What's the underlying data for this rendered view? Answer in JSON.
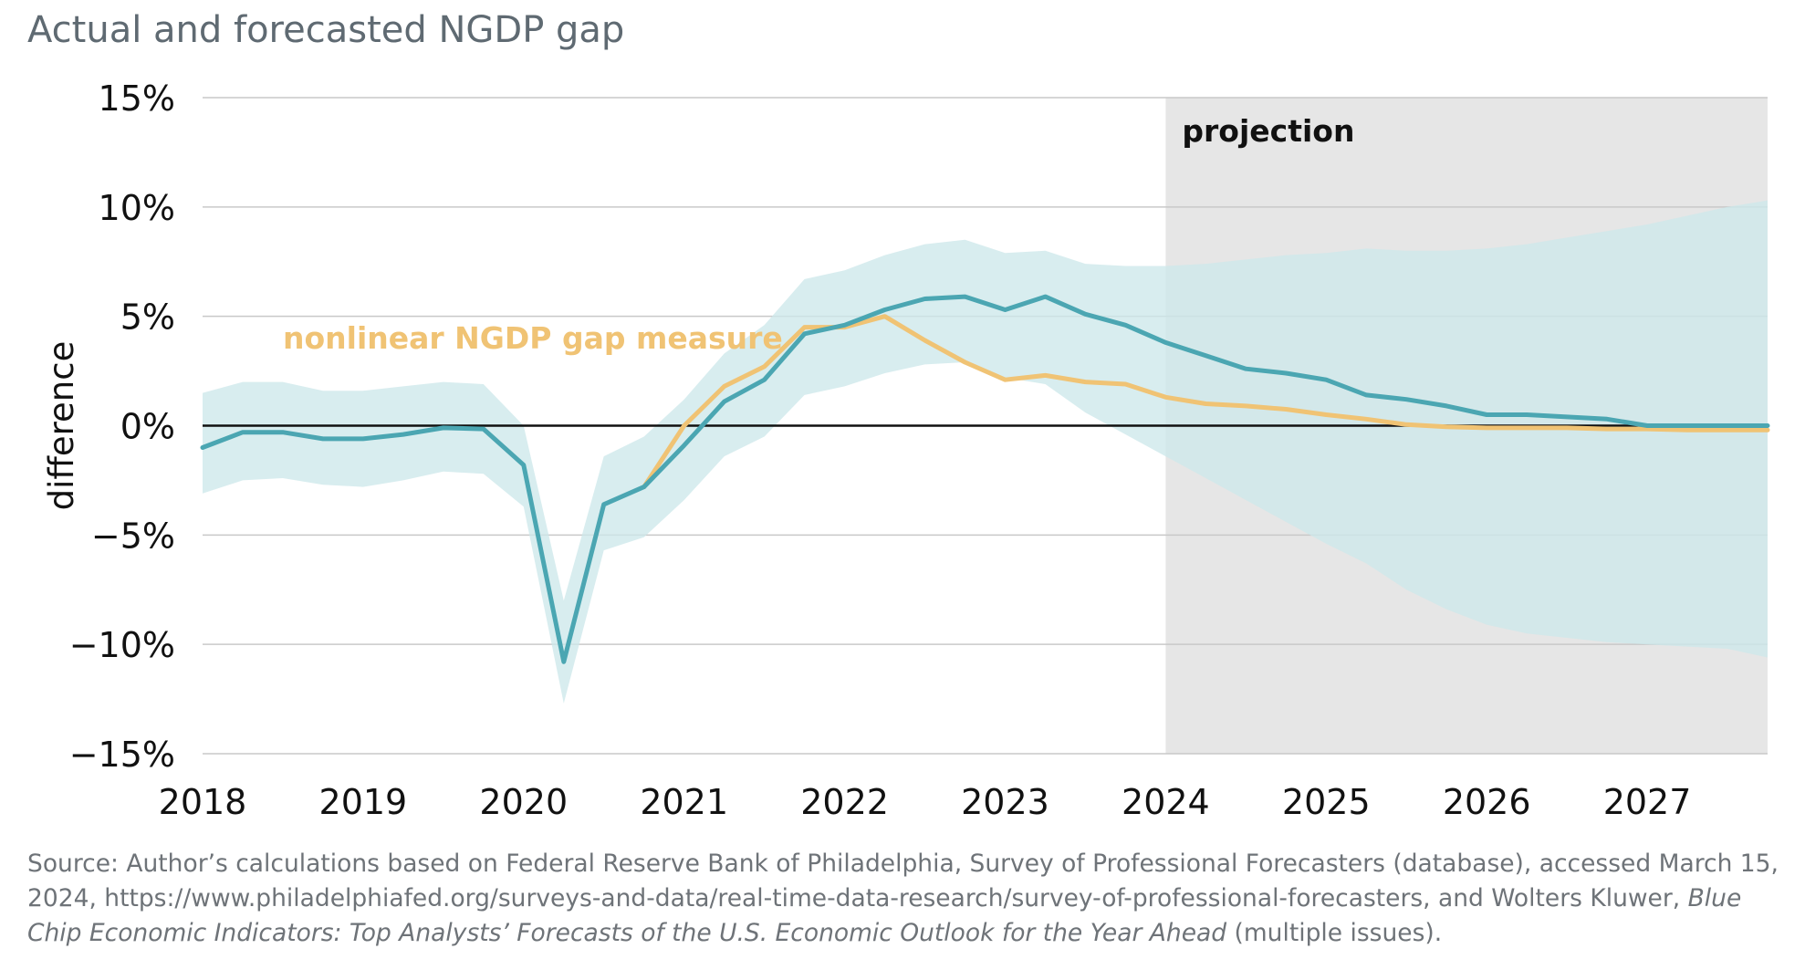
{
  "chart_data": {
    "type": "line",
    "title": "Actual and forecasted NGDP gap",
    "ylabel": "difference",
    "xlabel": "",
    "ylim": [
      -15,
      15
    ],
    "xlim": [
      2018,
      2027.75
    ],
    "y_ticks": [
      15,
      10,
      5,
      0,
      -5,
      -10,
      -15
    ],
    "y_tick_labels": [
      "15%",
      "10%",
      "5%",
      "0%",
      "−5%",
      "−10%",
      "−15%"
    ],
    "x_ticks": [
      2018,
      2019,
      2020,
      2021,
      2022,
      2023,
      2024,
      2025,
      2026,
      2027
    ],
    "x_tick_labels": [
      "2018",
      "2019",
      "2020",
      "2021",
      "2022",
      "2023",
      "2024",
      "2025",
      "2026",
      "2027"
    ],
    "grid": "horizontal",
    "projection": {
      "start": 2024,
      "end": 2027.75,
      "label": "projection"
    },
    "series": [
      {
        "name": "",
        "color": "#4ba6b2",
        "x": [
          2018,
          2018.25,
          2018.5,
          2018.75,
          2019,
          2019.25,
          2019.5,
          2019.75,
          2020,
          2020.25,
          2020.5,
          2020.75,
          2021,
          2021.25,
          2021.5,
          2021.75,
          2022,
          2022.25,
          2022.5,
          2022.75,
          2023,
          2023.25,
          2023.5,
          2023.75,
          2024,
          2024.25,
          2024.5,
          2024.75,
          2025,
          2025.25,
          2025.5,
          2025.75,
          2026,
          2026.25,
          2026.5,
          2026.75,
          2027,
          2027.25,
          2027.5,
          2027.75
        ],
        "values": [
          -1.0,
          -0.3,
          -0.3,
          -0.6,
          -0.6,
          -0.4,
          -0.1,
          -0.15,
          -1.8,
          -10.8,
          -3.6,
          -2.8,
          -0.9,
          1.1,
          2.1,
          4.2,
          4.6,
          5.3,
          5.8,
          5.9,
          5.3,
          5.9,
          5.1,
          4.6,
          3.8,
          3.2,
          2.6,
          2.4,
          2.1,
          1.4,
          1.2,
          0.9,
          0.5,
          0.5,
          0.4,
          0.3,
          0.0,
          0.0,
          0.0,
          0.0
        ]
      },
      {
        "name": "nonlinear NGDP gap measure",
        "color": "#f0c374",
        "x": [
          2020.75,
          2021,
          2021.25,
          2021.5,
          2021.75,
          2022,
          2022.25,
          2022.5,
          2022.75,
          2023,
          2023.25,
          2023.5,
          2023.75,
          2024,
          2024.25,
          2024.5,
          2024.75,
          2025,
          2025.25,
          2025.5,
          2025.75,
          2026,
          2026.25,
          2026.5,
          2026.75,
          2027,
          2027.25,
          2027.5,
          2027.75
        ],
        "values": [
          -2.8,
          0.0,
          1.8,
          2.7,
          4.5,
          4.5,
          5.0,
          3.9,
          2.9,
          2.1,
          2.3,
          2.0,
          1.9,
          1.3,
          1.0,
          0.9,
          0.75,
          0.5,
          0.3,
          0.05,
          -0.05,
          -0.1,
          -0.1,
          -0.1,
          -0.15,
          -0.15,
          -0.2,
          -0.2,
          -0.2
        ]
      }
    ],
    "band": {
      "color": "#cde8eb",
      "x": [
        2018,
        2018.25,
        2018.5,
        2018.75,
        2019,
        2019.25,
        2019.5,
        2019.75,
        2020,
        2020.25,
        2020.5,
        2020.75,
        2021,
        2021.25,
        2021.5,
        2021.75,
        2022,
        2022.25,
        2022.5,
        2022.75,
        2023,
        2023.25,
        2023.5,
        2023.75,
        2024,
        2024.25,
        2024.5,
        2024.75,
        2025,
        2025.25,
        2025.5,
        2025.75,
        2026,
        2026.25,
        2026.5,
        2026.75,
        2027,
        2027.25,
        2027.5,
        2027.75
      ],
      "upper": [
        1.5,
        2.0,
        2.0,
        1.6,
        1.6,
        1.8,
        2.0,
        1.9,
        0.0,
        -8.0,
        -1.4,
        -0.5,
        1.2,
        3.3,
        4.6,
        6.7,
        7.1,
        7.8,
        8.3,
        8.5,
        7.9,
        8.0,
        7.4,
        7.3,
        7.3,
        7.4,
        7.6,
        7.8,
        7.9,
        8.1,
        8.0,
        8.0,
        8.1,
        8.3,
        8.6,
        8.9,
        9.2,
        9.6,
        10.0,
        10.3
      ],
      "lower": [
        -3.1,
        -2.5,
        -2.4,
        -2.7,
        -2.8,
        -2.5,
        -2.1,
        -2.2,
        -3.7,
        -12.7,
        -5.7,
        -5.1,
        -3.4,
        -1.4,
        -0.5,
        1.4,
        1.8,
        2.4,
        2.8,
        2.9,
        2.2,
        1.9,
        0.6,
        -0.4,
        -1.4,
        -2.4,
        -3.4,
        -4.4,
        -5.4,
        -6.3,
        -7.5,
        -8.4,
        -9.1,
        -9.5,
        -9.7,
        -9.9,
        -10.0,
        -10.1,
        -10.2,
        -10.6
      ]
    },
    "annotations": [
      "nonlinear NGDP gap measure",
      "projection"
    ]
  },
  "source": {
    "lead": "Source: Author’s calculations based on Federal Reserve Bank of Philadelphia, Survey of Professional Forecasters (database), accessed March 15, 2024, https://www.philadelphiafed.org/surveys-and-data/real-time-data-research/survey-of-professional-forecasters, and Wolters Kluwer,",
    "italic": "Blue Chip Economic Indicators: Top Analysts’ Forecasts of the U.S. Economic Outlook for the Year Ahead",
    "tail": "(multiple issues)."
  }
}
